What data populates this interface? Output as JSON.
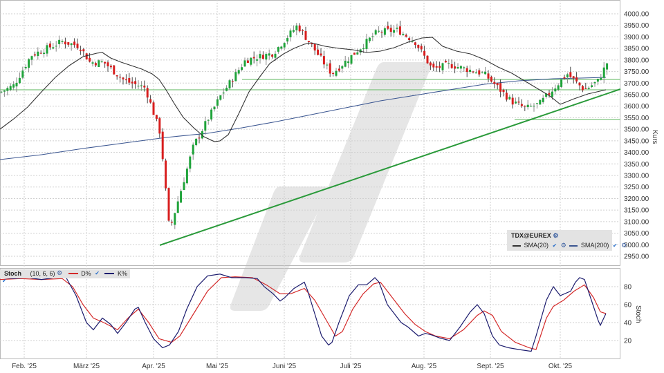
{
  "instrument": "TDX@EUREX",
  "price_panel": {
    "axis_label": "Kurs",
    "y_ticks": [
      "4000.00",
      "3950.00",
      "3900.00",
      "3850.00",
      "3800.00",
      "3750.00",
      "3700.00",
      "3650.00",
      "3600.00",
      "3550.00",
      "3500.00",
      "3450.00",
      "3400.00",
      "3350.00",
      "3300.00",
      "3250.00",
      "3200.00",
      "3150.00",
      "3100.00",
      "3050.00",
      "3000.00",
      "2950.00"
    ],
    "legend": {
      "title": "TDX@EUREX",
      "items": [
        {
          "label": "SMA(20)",
          "color": "#333333"
        },
        {
          "label": "SMA(200)",
          "color": "#3a5590"
        }
      ]
    }
  },
  "stoch_panel": {
    "axis_label": "Stoch",
    "name": "Stoch",
    "params": "(10, 6, 6)",
    "y_ticks": [
      "80",
      "60",
      "40",
      "20"
    ],
    "legend": [
      {
        "label": "D%",
        "color": "#d42a2a"
      },
      {
        "label": "K%",
        "color": "#1c1c6e"
      }
    ]
  },
  "x_axis": {
    "labels": [
      "Feb. '25",
      "März '25",
      "Apr. '25",
      "Mai '25",
      "Juni '25",
      "Juli '25",
      "Aug. '25",
      "Sept. '25",
      "Okt. '25"
    ]
  },
  "colors": {
    "up": "#1fa33a",
    "down": "#d81e1e",
    "trendline": "#2a9a3a",
    "support": "#7cc47c",
    "sma20": "#333333",
    "sma200": "#3a5590",
    "stoch_d": "#d42a2a",
    "stoch_k": "#1c1c6e"
  },
  "chart_data": [
    {
      "type": "line",
      "title": "TDX@EUREX",
      "ylabel": "Kurs",
      "ylim": [
        2930,
        4020
      ],
      "grid": true,
      "x_ticks": [
        "Feb. '25",
        "März '25",
        "Apr. '25",
        "Mai '25",
        "Juni '25",
        "Juli '25",
        "Aug. '25",
        "Sept. '25",
        "Okt. '25"
      ],
      "series": [
        {
          "name": "Close (approx.)",
          "x": [
            "Jan 24",
            "Feb 3",
            "Feb 14",
            "Feb 24",
            "Mär 3",
            "Mär 10",
            "Mär 18",
            "Mär 25",
            "Apr 1",
            "Apr 7",
            "Apr 9",
            "Apr 22",
            "May 2",
            "May 15",
            "May 28",
            "Jun 5",
            "Jun 13",
            "Jun 20",
            "Jul 3",
            "Jul 11",
            "Jul 22",
            "Aug 1",
            "Aug 8",
            "Aug 20",
            "Sep 3",
            "Sep 12",
            "Sep 19",
            "Sep 26",
            "Okt 6",
            "Okt 14",
            "Okt 20",
            "Okt 24"
          ],
          "values": [
            3660,
            3690,
            3820,
            3880,
            3860,
            3790,
            3790,
            3710,
            3680,
            3480,
            3060,
            3430,
            3640,
            3800,
            3830,
            3950,
            3780,
            3740,
            3850,
            3920,
            3930,
            3880,
            3760,
            3780,
            3740,
            3620,
            3590,
            3610,
            3740,
            3670,
            3710,
            3790
          ]
        },
        {
          "name": "SMA(20)",
          "x": [
            "Jan 24",
            "Feb 14",
            "Mär 3",
            "Mär 18",
            "Apr 1",
            "Apr 15",
            "Apr 28",
            "May 15",
            "Jun 5",
            "Jun 20",
            "Jul 11",
            "Jul 22",
            "Aug 8",
            "Sep 3",
            "Sep 19",
            "Okt 6",
            "Okt 24"
          ],
          "values": [
            3500,
            3700,
            3830,
            3840,
            3790,
            3560,
            3450,
            3680,
            3810,
            3830,
            3820,
            3860,
            3800,
            3700,
            3620,
            3630,
            3700
          ]
        },
        {
          "name": "SMA(200)",
          "x": [
            "Jan 24",
            "Apr 7",
            "Jun 5",
            "Aug 8",
            "Okt 24"
          ],
          "values": [
            3370,
            3470,
            3560,
            3670,
            3730
          ]
        },
        {
          "name": "Trendline",
          "x": [
            "Apr 7",
            "Okt 27"
          ],
          "values": [
            3000,
            3665
          ]
        },
        {
          "name": "Support lines",
          "levels": [
            3670,
            3720,
            3550
          ]
        }
      ]
    },
    {
      "type": "line",
      "title": "Stoch (10, 6, 6)",
      "ylabel": "Stoch",
      "ylim": [
        0,
        100
      ],
      "y_ticks": [
        20,
        40,
        60,
        80
      ],
      "series": [
        {
          "name": "K%",
          "x": [
            "Jan 24",
            "Feb 14",
            "Mär 3",
            "Mär 10",
            "Mär 20",
            "Apr 1",
            "Apr 10",
            "Apr 22",
            "May 2",
            "May 15",
            "May 28",
            "Jun 5",
            "Jun 20",
            "Jul 3",
            "Jul 17",
            "Aug 1",
            "Aug 15",
            "Aug 29",
            "Sep 10",
            "Sep 24",
            "Okt 6",
            "Okt 14",
            "Okt 20",
            "Okt 24"
          ],
          "values": [
            90,
            91,
            90,
            35,
            42,
            55,
            12,
            18,
            90,
            93,
            88,
            75,
            15,
            85,
            90,
            20,
            25,
            60,
            20,
            10,
            85,
            87,
            35,
            50
          ]
        },
        {
          "name": "D%",
          "x": [
            "Jan 24",
            "Feb 14",
            "Mär 3",
            "Mär 20",
            "Apr 1",
            "Apr 10",
            "Apr 22",
            "May 2",
            "May 15",
            "May 28",
            "Jun 5",
            "Jun 20",
            "Jul 3",
            "Jul 17",
            "Aug 1",
            "Aug 15",
            "Aug 29",
            "Sep 10",
            "Sep 24",
            "Okt 6",
            "Okt 14",
            "Okt 20",
            "Okt 24"
          ],
          "values": [
            88,
            90,
            88,
            42,
            52,
            18,
            20,
            70,
            92,
            88,
            78,
            25,
            65,
            85,
            25,
            22,
            55,
            25,
            12,
            65,
            82,
            50,
            50
          ]
        }
      ]
    }
  ]
}
